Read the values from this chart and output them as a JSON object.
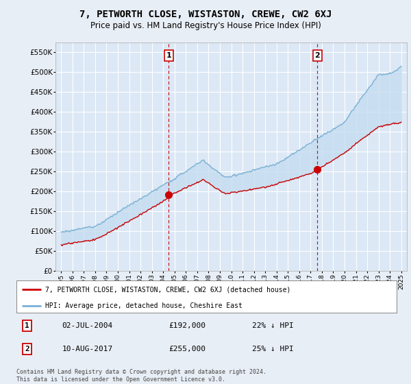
{
  "title": "7, PETWORTH CLOSE, WISTASTON, CREWE, CW2 6XJ",
  "subtitle": "Price paid vs. HM Land Registry's House Price Index (HPI)",
  "ylim": [
    0,
    575000
  ],
  "yticks": [
    0,
    50000,
    100000,
    150000,
    200000,
    250000,
    300000,
    350000,
    400000,
    450000,
    500000,
    550000
  ],
  "xlim_start": 1994.5,
  "xlim_end": 2025.5,
  "bg_color": "#e8eef5",
  "plot_bg": "#dce8f5",
  "grid_color": "#c8d8e8",
  "hpi_color": "#7ab0d4",
  "hpi_fill_color": "#c5ddf0",
  "price_color": "#cc0000",
  "transaction1": {
    "date": "02-JUL-2004",
    "price": 192000,
    "pct": "22%",
    "label": "1",
    "year": 2004.5
  },
  "transaction2": {
    "date": "10-AUG-2017",
    "price": 255000,
    "pct": "25%",
    "label": "2",
    "year": 2017.6
  },
  "legend_line1": "7, PETWORTH CLOSE, WISTASTON, CREWE, CW2 6XJ (detached house)",
  "legend_line2": "HPI: Average price, detached house, Cheshire East",
  "footer1": "Contains HM Land Registry data © Crown copyright and database right 2024.",
  "footer2": "This data is licensed under the Open Government Licence v3.0.",
  "table_row1": [
    "1",
    "02-JUL-2004",
    "£192,000",
    "22% ↓ HPI"
  ],
  "table_row2": [
    "2",
    "10-AUG-2017",
    "£255,000",
    "25% ↓ HPI"
  ]
}
